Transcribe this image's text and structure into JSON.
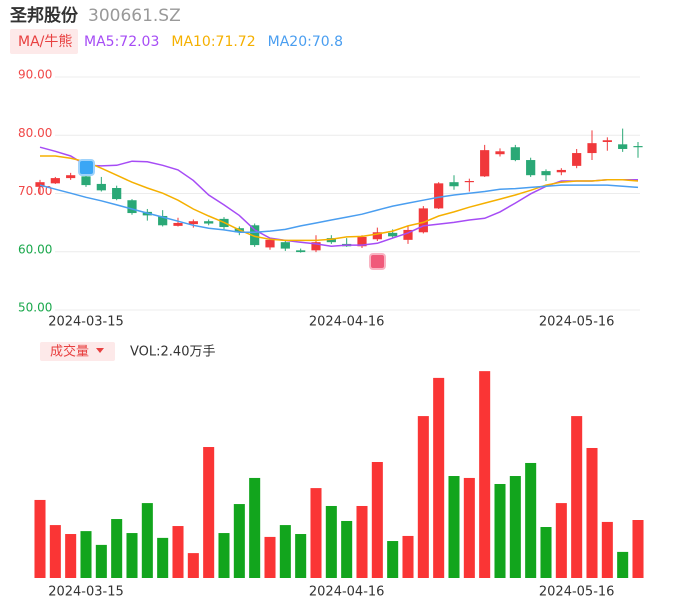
{
  "header": {
    "name": "圣邦股份",
    "code": "300661.SZ"
  },
  "chart_data": [
    {
      "type": "candlestick",
      "toggle_label": "MA/牛熊",
      "categories": [
        null,
        null,
        null,
        "2024-03-15",
        null,
        null,
        null,
        null,
        null,
        null,
        null,
        null,
        null,
        null,
        null,
        null,
        null,
        null,
        null,
        null,
        "2024-04-16",
        null,
        null,
        null,
        null,
        null,
        null,
        null,
        null,
        null,
        null,
        null,
        null,
        null,
        null,
        "2024-05-16",
        null,
        null,
        null,
        null
      ],
      "open": [
        70.8,
        71.4,
        72.3,
        72.6,
        71.3,
        70.6,
        68.5,
        66.5,
        65.8,
        64.1,
        64.4,
        64.9,
        65.3,
        63.7,
        64.2,
        60.4,
        61.3,
        59.9,
        59.9,
        62,
        61,
        60.6,
        61.8,
        62.9,
        61.7,
        63,
        67.1,
        71.6,
        71.6,
        72.6,
        76.4,
        77.6,
        75.4,
        73.5,
        73.3,
        74.4,
        76.6,
        78.5,
        78.1,
        77.8
      ],
      "high": [
        72,
        72.5,
        73.2,
        74,
        72.5,
        71,
        68.7,
        67,
        66.8,
        65.5,
        65.2,
        65.2,
        65.6,
        64,
        64.5,
        62,
        61.6,
        60.2,
        62.5,
        62.5,
        62,
        62.5,
        63.8,
        63.5,
        64,
        67.5,
        71.6,
        72.8,
        72.2,
        78,
        77.4,
        78,
        75.8,
        73.8,
        74,
        77.3,
        80.5,
        79.3,
        80.8,
        78.5
      ],
      "low": [
        69.5,
        71.3,
        72,
        70.8,
        70,
        68.5,
        66,
        65,
        64,
        64,
        63.8,
        64.2,
        63.5,
        62.5,
        60.5,
        60,
        59.8,
        59.5,
        59.6,
        61,
        60.5,
        60.3,
        61.5,
        62,
        61,
        62.8,
        67,
        70.3,
        70,
        72.5,
        76,
        75.2,
        72.5,
        71.8,
        72.8,
        74,
        75.4,
        77,
        76.8,
        75.8
      ],
      "close": [
        71.6,
        72.3,
        72.8,
        71.1,
        70.2,
        68.7,
        66.3,
        65.9,
        64.2,
        64.6,
        64.9,
        64.5,
        63.9,
        63,
        60.8,
        61.7,
        60.2,
        59.6,
        61.3,
        61.3,
        60.6,
        62.2,
        63,
        62.3,
        63.4,
        67.1,
        71.4,
        70.9,
        71.8,
        77.1,
        76.9,
        75.4,
        72.8,
        72.8,
        73.7,
        76.6,
        78.3,
        78.8,
        77.3,
        77.6
      ],
      "up_color": "#f0383b",
      "down_color": "#2aa876",
      "series": [
        {
          "name": "MA5:72.03",
          "color": "#a64cf5",
          "values": [
            77.6,
            76.9,
            76.1,
            74.5,
            74.4,
            74.5,
            75.2,
            75.1,
            74.5,
            73.7,
            71.9,
            69.4,
            67.7,
            65.9,
            63.4,
            62,
            61.6,
            61.3,
            61,
            60.6,
            60.8,
            60.8,
            61.1,
            62,
            62.9,
            64.1,
            64.4,
            64.7,
            65.1,
            65.4,
            66.5,
            68,
            69.6,
            70.9,
            71.8,
            71.8,
            71.8,
            72,
            72,
            72
          ]
        },
        {
          "name": "MA10:71.72",
          "color": "#f5b000",
          "values": [
            76.1,
            76.1,
            75.7,
            75.1,
            74,
            72.8,
            71.6,
            70.6,
            69.7,
            68.5,
            67,
            65.8,
            64.7,
            63.4,
            62.3,
            61.8,
            61.6,
            61.6,
            61.6,
            61.8,
            62.2,
            62.3,
            62.7,
            63.2,
            64.1,
            64.7,
            65.8,
            66.5,
            67.3,
            68,
            68.7,
            69.4,
            70.2,
            71.1,
            71.6,
            71.8,
            71.8,
            72,
            72,
            71.8
          ]
        },
        {
          "name": "MA20:70.8",
          "color": "#4a9ef0",
          "values": [
            71.1,
            70.4,
            69.7,
            69,
            68.4,
            67.7,
            67,
            66.3,
            65.6,
            64.9,
            64.2,
            63.7,
            63.4,
            63,
            63,
            63.2,
            63.5,
            64.1,
            64.6,
            65.1,
            65.6,
            66.1,
            66.8,
            67.5,
            68,
            68.5,
            69,
            69.4,
            69.7,
            70,
            70.4,
            70.5,
            70.7,
            70.9,
            71.1,
            71.1,
            71.1,
            71.1,
            70.9,
            70.7
          ]
        }
      ],
      "ylim": [
        50,
        90
      ],
      "yticks": [
        {
          "value": 90,
          "label": "90.00"
        },
        {
          "value": 80,
          "label": "80.00"
        },
        {
          "value": 70,
          "label": "70.00"
        },
        {
          "value": 60,
          "label": "60.00"
        },
        {
          "value": 50,
          "label": "50.00"
        }
      ],
      "ytick_colors": [
        "#f04848",
        "#f04848",
        "#f04848",
        "#1aa84c",
        "#1aa84c"
      ],
      "grid": true
    },
    {
      "type": "bar",
      "toggle_label": "成交量",
      "summary": "VOL:2.40万手",
      "categories": [
        null,
        null,
        null,
        "2024-03-15",
        null,
        null,
        null,
        null,
        null,
        null,
        null,
        null,
        null,
        null,
        null,
        null,
        null,
        null,
        null,
        null,
        "2024-04-16",
        null,
        null,
        null,
        null,
        null,
        null,
        null,
        null,
        null,
        null,
        null,
        null,
        null,
        null,
        "2024-05-16",
        null,
        null,
        null,
        null
      ],
      "values": [
        3.23,
        2.19,
        1.82,
        1.94,
        1.37,
        2.44,
        1.86,
        3.1,
        1.66,
        2.15,
        1.03,
        5.42,
        1.86,
        3.06,
        4.14,
        1.7,
        2.19,
        1.82,
        3.72,
        2.98,
        2.36,
        2.98,
        4.8,
        1.53,
        1.74,
        6.7,
        8.28,
        4.22,
        4.14,
        8.56,
        3.89,
        4.22,
        4.76,
        2.11,
        3.1,
        6.7,
        5.38,
        2.32,
        1.08,
        2.4
      ],
      "colors": [
        "#fa3535",
        "#fa3535",
        "#fa3535",
        "#12a51d",
        "#12a51d",
        "#12a51d",
        "#12a51d",
        "#12a51d",
        "#12a51d",
        "#fa3535",
        "#fa3535",
        "#fa3535",
        "#12a51d",
        "#12a51d",
        "#12a51d",
        "#fa3535",
        "#12a51d",
        "#12a51d",
        "#fa3535",
        "#12a51d",
        "#12a51d",
        "#fa3535",
        "#fa3535",
        "#12a51d",
        "#fa3535",
        "#fa3535",
        "#fa3535",
        "#12a51d",
        "#fa3535",
        "#fa3535",
        "#12a51d",
        "#12a51d",
        "#12a51d",
        "#12a51d",
        "#fa3535",
        "#fa3535",
        "#fa3535",
        "#fa3535",
        "#12a51d",
        "#fa3535"
      ],
      "ylim": [
        0,
        9
      ]
    }
  ]
}
